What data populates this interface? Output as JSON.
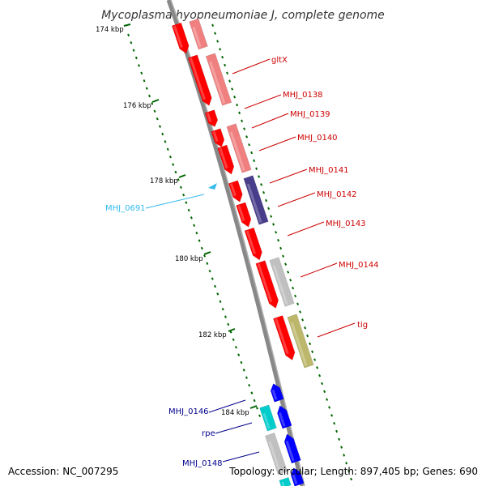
{
  "title": "Mycoplasma hyopneumoniae J, complete genome",
  "footer": {
    "accession": "Accession: NC_007295",
    "summary": "Topology: circular; Length: 897,405 bp; Genes: 690"
  },
  "colors": {
    "forward_gene": "#ff0000",
    "forward_gene_light": "#f08080",
    "reverse_gene": "#0000ff",
    "teal_gene": "#00cccc",
    "purple_gene": "#483d8b",
    "gray_gene": "#c0c0c0",
    "olive_gene": "#bdb76b",
    "backbone": "#808080",
    "ticks": "#006400",
    "label_red": "#cc0000",
    "label_blue": "#00008b",
    "label_cyan": "#33bbee"
  },
  "scale_ticks": [
    "174 kbp",
    "176 kbp",
    "178 kbp",
    "180 kbp",
    "182 kbp",
    "184 kbp"
  ],
  "gene_labels": [
    {
      "name": "gltX",
      "color": "#cc0000",
      "side": "right"
    },
    {
      "name": "MHJ_0138",
      "color": "#cc0000",
      "side": "right"
    },
    {
      "name": "MHJ_0139",
      "color": "#cc0000",
      "side": "right"
    },
    {
      "name": "MHJ_0140",
      "color": "#cc0000",
      "side": "right"
    },
    {
      "name": "MHJ_0141",
      "color": "#cc0000",
      "side": "right"
    },
    {
      "name": "MHJ_0142",
      "color": "#cc0000",
      "side": "right"
    },
    {
      "name": "MHJ_0143",
      "color": "#cc0000",
      "side": "right"
    },
    {
      "name": "MHJ_0144",
      "color": "#cc0000",
      "side": "right"
    },
    {
      "name": "tig",
      "color": "#cc0000",
      "side": "right"
    },
    {
      "name": "MHJ_0691",
      "color": "#33bbee",
      "side": "left"
    },
    {
      "name": "MHJ_0146",
      "color": "#00008b",
      "side": "left"
    },
    {
      "name": "rpe",
      "color": "#00008b",
      "side": "left"
    },
    {
      "name": "MHJ_0148",
      "color": "#00008b",
      "side": "left"
    }
  ]
}
